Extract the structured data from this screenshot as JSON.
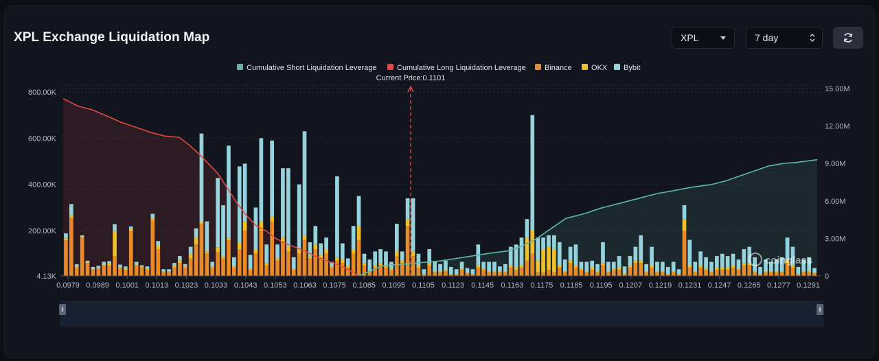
{
  "header": {
    "title": "XPL Exchange Liquidation Map",
    "coin_select": "XPL",
    "range_select": "7 day"
  },
  "colors": {
    "short_line": "#5fb8a4",
    "long_line": "#e04848",
    "binance": "#e88a28",
    "okx": "#f0c02a",
    "bybit": "#95d3dc"
  },
  "chart_data": {
    "type": "bar",
    "title": "XPL Exchange Liquidation Map",
    "legend_placement": "top-center",
    "legend": [
      "Cumulative Short Liquidation Leverage",
      "Cumulative Long Liquidation Leverage",
      "Binance",
      "OKX",
      "Bybit"
    ],
    "current_price_label": "Current Price:0.1101",
    "current_price": 0.1101,
    "x_range": [
      0.0979,
      0.1291
    ],
    "x_ticks": [
      "0.0979",
      "0.0989",
      "0.1001",
      "0.1013",
      "0.1023",
      "0.1033",
      "0.1043",
      "0.1053",
      "0.1063",
      "0.1075",
      "0.1085",
      "0.1095",
      "0.1105",
      "0.1123",
      "0.1145",
      "0.1163",
      "0.1175",
      "0.1185",
      "0.1195",
      "0.1207",
      "0.1219",
      "0.1231",
      "0.1247",
      "0.1265",
      "0.1277",
      "0.1291"
    ],
    "y_left": {
      "ticks": [
        "800.00K",
        "600.00K",
        "400.00K",
        "200.00K",
        "4.13K"
      ],
      "tick_values": [
        800000,
        600000,
        400000,
        200000,
        4130
      ],
      "range": [
        4130,
        800000
      ]
    },
    "y_right": {
      "ticks": [
        "15.00M",
        "12.00M",
        "9.00M",
        "6.00M",
        "3.00M",
        "0"
      ],
      "tick_values": [
        15000000,
        12000000,
        9000000,
        6000000,
        3000000,
        0
      ],
      "range": [
        0,
        15000000
      ]
    },
    "grid": true,
    "series": [
      {
        "name": "Binance",
        "stack": "exchanges",
        "values": [
          158000,
          255000,
          40000,
          170000,
          60000,
          30000,
          35000,
          50000,
          48000,
          88000,
          38000,
          30000,
          198000,
          50000,
          40000,
          30000,
          243000,
          120000,
          20000,
          20000,
          40000,
          60000,
          40000,
          80000,
          140000,
          230000,
          100000,
          40000,
          108000,
          80000,
          158000,
          40000,
          118000,
          200000,
          30000,
          100000,
          200000,
          50000,
          240000,
          70000,
          150000,
          110000,
          30000,
          100000,
          160000,
          80000,
          120000,
          80000,
          100000,
          40000,
          70000,
          60000,
          40000,
          100000,
          160000,
          50000,
          20000,
          40000,
          50000,
          40000,
          30000,
          90000,
          60000,
          220000,
          90000,
          40000,
          10000,
          50000,
          20000,
          20000,
          25000,
          10000,
          10000,
          30000,
          15000,
          10000,
          40000,
          30000,
          20000,
          20000,
          20000,
          20000,
          40000,
          30000,
          40000,
          70000,
          100000,
          20000,
          20000,
          30000,
          20000,
          40000,
          20000,
          60000,
          40000,
          30000,
          20000,
          30000,
          20000,
          50000,
          20000,
          30000,
          30000,
          10000,
          40000,
          60000,
          60000,
          20000,
          40000,
          20000,
          20000,
          10000,
          20000,
          10000,
          200000,
          40000,
          20000,
          40000,
          30000,
          20000,
          30000,
          30000,
          30000,
          40000,
          30000,
          50000,
          50000,
          20000,
          10000,
          20000,
          20000,
          20000,
          20000,
          60000,
          40000,
          10000,
          20000,
          20000,
          15000
        ],
        "yaxis": "left"
      },
      {
        "name": "OKX",
        "stack": "exchanges",
        "values": [
          10000,
          10000,
          5000,
          5000,
          5000,
          3000,
          3000,
          5000,
          10000,
          110000,
          5000,
          5000,
          10000,
          5000,
          5000,
          5000,
          10000,
          15000,
          3000,
          3000,
          10000,
          10000,
          5000,
          20000,
          30000,
          10000,
          10000,
          5000,
          20000,
          10000,
          10000,
          5000,
          30000,
          40000,
          5000,
          20000,
          40000,
          10000,
          20000,
          10000,
          20000,
          20000,
          5000,
          20000,
          20000,
          10000,
          20000,
          15000,
          20000,
          5000,
          15000,
          15000,
          10000,
          20000,
          60000,
          10000,
          5000,
          10000,
          10000,
          10000,
          5000,
          20000,
          10000,
          30000,
          20000,
          10000,
          3000,
          10000,
          5000,
          5000,
          5000,
          3000,
          3000,
          5000,
          3000,
          3000,
          10000,
          5000,
          5000,
          5000,
          5000,
          5000,
          10000,
          10000,
          10000,
          100000,
          100000,
          50000,
          100000,
          100000,
          100000,
          10000,
          5000,
          10000,
          10000,
          5000,
          5000,
          10000,
          5000,
          10000,
          5000,
          5000,
          10000,
          5000,
          10000,
          10000,
          10000,
          5000,
          10000,
          5000,
          5000,
          3000,
          5000,
          3000,
          50000,
          10000,
          5000,
          10000,
          5000,
          5000,
          10000,
          10000,
          10000,
          10000,
          5000,
          10000,
          10000,
          5000,
          3000,
          5000,
          5000,
          5000,
          5000,
          10000,
          10000,
          3000,
          5000,
          5000,
          3000
        ],
        "yaxis": "left"
      },
      {
        "name": "Bybit",
        "stack": "exchanges",
        "values": [
          20000,
          50000,
          10000,
          5000,
          5000,
          10000,
          10000,
          10000,
          10000,
          30000,
          10000,
          10000,
          10000,
          10000,
          5000,
          10000,
          20000,
          20000,
          10000,
          10000,
          10000,
          20000,
          10000,
          30000,
          40000,
          380000,
          130000,
          20000,
          300000,
          220000,
          400000,
          40000,
          330000,
          250000,
          60000,
          180000,
          360000,
          80000,
          330000,
          60000,
          300000,
          340000,
          50000,
          280000,
          450000,
          60000,
          80000,
          50000,
          50000,
          20000,
          350000,
          70000,
          30000,
          100000,
          130000,
          40000,
          50000,
          60000,
          60000,
          60000,
          30000,
          120000,
          40000,
          90000,
          230000,
          50000,
          20000,
          60000,
          40000,
          30000,
          40000,
          30000,
          20000,
          30000,
          20000,
          20000,
          90000,
          30000,
          40000,
          40000,
          20000,
          30000,
          80000,
          100000,
          120000,
          80000,
          500000,
          100000,
          50000,
          50000,
          60000,
          100000,
          50000,
          60000,
          90000,
          30000,
          40000,
          30000,
          30000,
          90000,
          40000,
          30000,
          50000,
          30000,
          40000,
          60000,
          110000,
          30000,
          80000,
          40000,
          40000,
          30000,
          40000,
          20000,
          60000,
          110000,
          40000,
          60000,
          50000,
          40000,
          50000,
          60000,
          50000,
          50000,
          40000,
          60000,
          70000,
          60000,
          30000,
          50000,
          40000,
          50000,
          60000,
          100000,
          80000,
          30000,
          50000,
          60000,
          20000
        ],
        "yaxis": "left"
      },
      {
        "name": "Cumulative Long Liquidation Leverage",
        "type": "line",
        "yaxis": "right",
        "x": [
          0.0979,
          0.0985,
          0.0991,
          0.0997,
          0.1003,
          0.1009,
          0.1015,
          0.1021,
          0.1027,
          0.1031,
          0.1035,
          0.1039,
          0.1043,
          0.1047,
          0.1051,
          0.1055,
          0.1059,
          0.1063,
          0.1067,
          0.1071,
          0.1075,
          0.1079,
          0.1083,
          0.1087,
          0.1091,
          0.1095,
          0.1099,
          0.1101
        ],
        "values": [
          14200000,
          13600000,
          13300000,
          12800000,
          12300000,
          11900000,
          11500000,
          11200000,
          11100000,
          10500000,
          9800000,
          9000000,
          8200000,
          7000000,
          5800000,
          4800000,
          4000000,
          3600000,
          3000000,
          2600000,
          2300000,
          2000000,
          1600000,
          1300000,
          1000000,
          700000,
          300000,
          0
        ]
      },
      {
        "name": "Cumulative Short Liquidation Leverage",
        "type": "line",
        "yaxis": "right",
        "x": [
          0.1101,
          0.1105,
          0.1111,
          0.1123,
          0.1135,
          0.1145,
          0.1155,
          0.1163,
          0.1169,
          0.1175,
          0.1181,
          0.1187,
          0.1195,
          0.1201,
          0.1207,
          0.1213,
          0.1219,
          0.1225,
          0.1231,
          0.1239,
          0.1247,
          0.1253,
          0.1259,
          0.1265,
          0.1271,
          0.1277,
          0.1283,
          0.1291
        ],
        "values": [
          0,
          300000,
          800000,
          1000000,
          1200000,
          1500000,
          1800000,
          2000000,
          2400000,
          3000000,
          3800000,
          4600000,
          5000000,
          5400000,
          5700000,
          6000000,
          6300000,
          6600000,
          6800000,
          7100000,
          7300000,
          7600000,
          8000000,
          8400000,
          8800000,
          9000000,
          9100000,
          9300000
        ]
      }
    ]
  },
  "watermark": "coinglass"
}
